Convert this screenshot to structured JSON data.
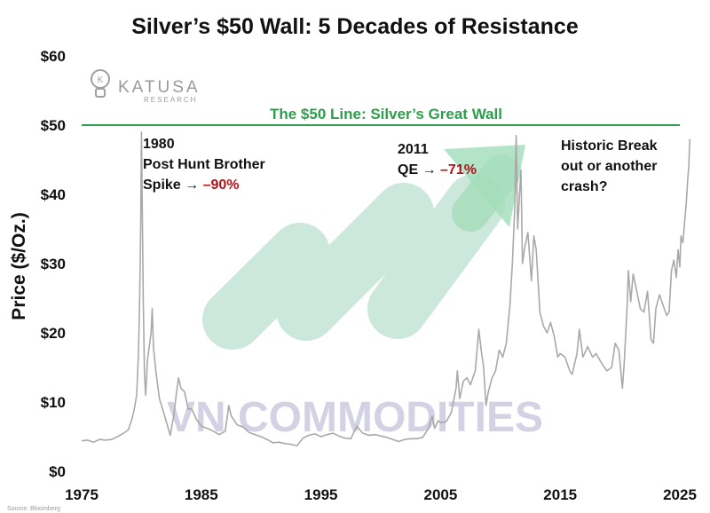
{
  "chart_data": {
    "type": "line",
    "title": "Silver’s $50 Wall: 5 Decades of Resistance",
    "ylabel": "Price ($/Oz.)",
    "xlabel": "",
    "xlim": [
      1975,
      2025
    ],
    "ylim": [
      0,
      60
    ],
    "x_ticks": [
      {
        "value": 1975,
        "label": "1975"
      },
      {
        "value": 1985,
        "label": "1985"
      },
      {
        "value": 1995,
        "label": "1995"
      },
      {
        "value": 2005,
        "label": "2005"
      },
      {
        "value": 2015,
        "label": "2015"
      },
      {
        "value": 2025,
        "label": "2025"
      }
    ],
    "y_ticks": [
      {
        "value": 0,
        "label": "$0"
      },
      {
        "value": 10,
        "label": "$10"
      },
      {
        "value": 20,
        "label": "$20"
      },
      {
        "value": 30,
        "label": "$30"
      },
      {
        "value": 40,
        "label": "$40"
      },
      {
        "value": 50,
        "label": "$50"
      },
      {
        "value": 60,
        "label": "$60"
      }
    ],
    "reference_line": {
      "value": 50,
      "label": "The $50 Line: Silver’s Great Wall",
      "color": "#2e9e4c"
    },
    "series": [
      {
        "name": "Silver price",
        "color": "#a9a9a9",
        "points": [
          [
            1975.0,
            4.4
          ],
          [
            1975.5,
            4.5
          ],
          [
            1976.0,
            4.2
          ],
          [
            1976.5,
            4.6
          ],
          [
            1977.0,
            4.5
          ],
          [
            1977.5,
            4.6
          ],
          [
            1978.0,
            5.0
          ],
          [
            1978.5,
            5.5
          ],
          [
            1978.9,
            6.0
          ],
          [
            1979.2,
            7.5
          ],
          [
            1979.4,
            9.0
          ],
          [
            1979.6,
            11.0
          ],
          [
            1979.75,
            17.0
          ],
          [
            1979.85,
            25.0
          ],
          [
            1979.93,
            35.0
          ],
          [
            1980.0,
            49.0
          ],
          [
            1980.07,
            38.0
          ],
          [
            1980.15,
            25.0
          ],
          [
            1980.25,
            14.0
          ],
          [
            1980.35,
            11.0
          ],
          [
            1980.5,
            16.0
          ],
          [
            1980.65,
            18.0
          ],
          [
            1980.8,
            20.0
          ],
          [
            1980.9,
            23.5
          ],
          [
            1981.0,
            18.0
          ],
          [
            1981.2,
            14.5
          ],
          [
            1981.5,
            10.5
          ],
          [
            1981.8,
            8.8
          ],
          [
            1982.1,
            7.0
          ],
          [
            1982.4,
            5.2
          ],
          [
            1982.7,
            8.0
          ],
          [
            1982.9,
            11.0
          ],
          [
            1983.1,
            13.5
          ],
          [
            1983.3,
            12.0
          ],
          [
            1983.6,
            11.5
          ],
          [
            1983.9,
            9.0
          ],
          [
            1984.2,
            9.0
          ],
          [
            1984.6,
            7.5
          ],
          [
            1985.0,
            6.5
          ],
          [
            1985.5,
            6.2
          ],
          [
            1986.0,
            5.8
          ],
          [
            1986.5,
            5.3
          ],
          [
            1987.0,
            5.8
          ],
          [
            1987.3,
            9.5
          ],
          [
            1987.5,
            8.0
          ],
          [
            1988.0,
            6.7
          ],
          [
            1988.5,
            6.4
          ],
          [
            1989.0,
            5.6
          ],
          [
            1989.5,
            5.3
          ],
          [
            1990.0,
            5.0
          ],
          [
            1990.5,
            4.6
          ],
          [
            1991.0,
            4.1
          ],
          [
            1991.5,
            4.2
          ],
          [
            1992.0,
            4.0
          ],
          [
            1992.5,
            3.9
          ],
          [
            1993.0,
            3.7
          ],
          [
            1993.5,
            4.8
          ],
          [
            1994.0,
            5.2
          ],
          [
            1994.5,
            5.4
          ],
          [
            1995.0,
            5.0
          ],
          [
            1995.5,
            5.3
          ],
          [
            1996.0,
            5.5
          ],
          [
            1996.5,
            5.1
          ],
          [
            1997.0,
            4.8
          ],
          [
            1997.5,
            4.7
          ],
          [
            1998.0,
            6.5
          ],
          [
            1998.5,
            5.5
          ],
          [
            1999.0,
            5.2
          ],
          [
            1999.5,
            5.3
          ],
          [
            2000.0,
            5.1
          ],
          [
            2000.5,
            4.9
          ],
          [
            2001.0,
            4.6
          ],
          [
            2001.5,
            4.3
          ],
          [
            2002.0,
            4.6
          ],
          [
            2002.5,
            4.7
          ],
          [
            2003.0,
            4.7
          ],
          [
            2003.5,
            4.9
          ],
          [
            2004.0,
            6.2
          ],
          [
            2004.3,
            8.0
          ],
          [
            2004.5,
            6.2
          ],
          [
            2004.8,
            7.3
          ],
          [
            2005.0,
            7.0
          ],
          [
            2005.5,
            7.2
          ],
          [
            2005.9,
            8.5
          ],
          [
            2006.3,
            12.0
          ],
          [
            2006.4,
            14.5
          ],
          [
            2006.6,
            10.5
          ],
          [
            2006.9,
            13.0
          ],
          [
            2007.2,
            13.5
          ],
          [
            2007.5,
            12.5
          ],
          [
            2007.9,
            14.5
          ],
          [
            2008.2,
            20.5
          ],
          [
            2008.4,
            17.5
          ],
          [
            2008.6,
            15.0
          ],
          [
            2008.8,
            9.5
          ],
          [
            2009.0,
            11.5
          ],
          [
            2009.3,
            13.5
          ],
          [
            2009.6,
            14.5
          ],
          [
            2009.9,
            17.5
          ],
          [
            2010.2,
            16.5
          ],
          [
            2010.5,
            18.5
          ],
          [
            2010.8,
            24.0
          ],
          [
            2011.0,
            30.0
          ],
          [
            2011.2,
            38.0
          ],
          [
            2011.32,
            48.5
          ],
          [
            2011.45,
            35.0
          ],
          [
            2011.6,
            40.0
          ],
          [
            2011.72,
            43.5
          ],
          [
            2011.85,
            30.0
          ],
          [
            2012.0,
            32.0
          ],
          [
            2012.3,
            34.5
          ],
          [
            2012.6,
            27.5
          ],
          [
            2012.8,
            34.0
          ],
          [
            2013.0,
            32.0
          ],
          [
            2013.3,
            23.0
          ],
          [
            2013.6,
            21.0
          ],
          [
            2013.9,
            20.0
          ],
          [
            2014.2,
            21.5
          ],
          [
            2014.5,
            19.5
          ],
          [
            2014.8,
            16.5
          ],
          [
            2015.0,
            17.0
          ],
          [
            2015.4,
            16.5
          ],
          [
            2015.8,
            14.5
          ],
          [
            2016.0,
            14.0
          ],
          [
            2016.4,
            17.0
          ],
          [
            2016.6,
            20.5
          ],
          [
            2016.9,
            16.5
          ],
          [
            2017.3,
            18.0
          ],
          [
            2017.7,
            16.5
          ],
          [
            2018.0,
            17.0
          ],
          [
            2018.5,
            15.5
          ],
          [
            2018.9,
            14.5
          ],
          [
            2019.3,
            15.0
          ],
          [
            2019.6,
            18.5
          ],
          [
            2019.9,
            17.5
          ],
          [
            2020.2,
            12.0
          ],
          [
            2020.35,
            15.5
          ],
          [
            2020.6,
            24.0
          ],
          [
            2020.7,
            29.0
          ],
          [
            2020.9,
            24.5
          ],
          [
            2021.1,
            28.5
          ],
          [
            2021.4,
            26.0
          ],
          [
            2021.7,
            23.5
          ],
          [
            2022.0,
            23.0
          ],
          [
            2022.3,
            26.0
          ],
          [
            2022.6,
            19.0
          ],
          [
            2022.8,
            18.5
          ],
          [
            2023.0,
            23.5
          ],
          [
            2023.3,
            25.5
          ],
          [
            2023.6,
            24.0
          ],
          [
            2023.9,
            22.5
          ],
          [
            2024.1,
            23.0
          ],
          [
            2024.3,
            29.0
          ],
          [
            2024.5,
            30.5
          ],
          [
            2024.7,
            28.0
          ],
          [
            2024.85,
            32.0
          ],
          [
            2025.0,
            29.5
          ],
          [
            2025.1,
            34.0
          ],
          [
            2025.25,
            33.0
          ],
          [
            2025.4,
            36.0
          ],
          [
            2025.55,
            39.0
          ],
          [
            2025.65,
            42.0
          ],
          [
            2025.75,
            44.0
          ],
          [
            2025.83,
            48.0
          ]
        ]
      }
    ],
    "annotations": [
      {
        "lines": [
          "1980",
          "Post Hunt Brother",
          "Spike → "
        ],
        "highlight": "–90%"
      },
      {
        "lines": [
          "2011",
          "QE → "
        ],
        "highlight": "–71%"
      },
      {
        "lines": [
          "Historic Break",
          "out or another",
          "crash?"
        ],
        "highlight": ""
      }
    ]
  },
  "watermark": {
    "text": "VN COMMODITIES"
  },
  "logo": {
    "name": "KATUSA",
    "sub": "RESEARCH"
  },
  "source": "Source: Bloomberg",
  "colors": {
    "wall": "#2e9e4c",
    "line": "#a9a9a9",
    "accent_red": "#b3121b",
    "arrow": "#5ec486",
    "bubbles": "#a3d5be"
  }
}
